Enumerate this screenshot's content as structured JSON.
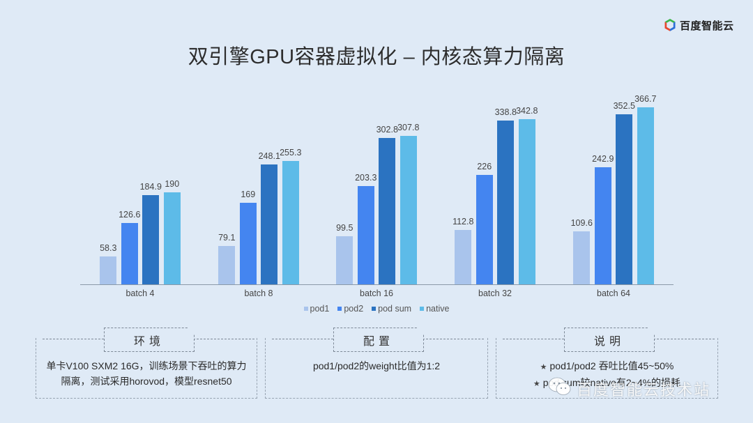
{
  "brand": {
    "name": "百度智能云",
    "icon": "baidu-cloud-hexagon-logo",
    "colors": [
      "#3bb54a",
      "#e8482f",
      "#2d6fd8"
    ]
  },
  "title": "双引擎GPU容器虚拟化 – 内核态算力隔离",
  "chart_data": {
    "type": "bar",
    "title": "",
    "xlabel": "",
    "ylabel": "",
    "grid": false,
    "legend_position": "bottom",
    "categories": [
      "batch 4",
      "batch 8",
      "batch 16",
      "batch 32",
      "batch 64"
    ],
    "series": [
      {
        "name": "pod1",
        "color": "#a9c4ec",
        "values": [
          58.3,
          79.1,
          99.5,
          112.8,
          109.6
        ]
      },
      {
        "name": "pod2",
        "color": "#4485f0",
        "values": [
          126.6,
          169,
          203.3,
          226,
          242.9
        ]
      },
      {
        "name": "pod sum",
        "color": "#2b73c1",
        "values": [
          184.9,
          248.1,
          302.8,
          338.8,
          352.5
        ]
      },
      {
        "name": "native",
        "color": "#5dbbe8",
        "values": [
          190,
          255.3,
          307.8,
          342.8,
          366.7
        ]
      }
    ],
    "value_labels": [
      [
        "58.3",
        "79.1",
        "99.5",
        "112.8",
        "109.6"
      ],
      [
        "126.6",
        "169",
        "203.3",
        "226",
        "242.9"
      ],
      [
        "184.9",
        "248.1",
        "302.8",
        "338.8",
        "352.5"
      ],
      [
        "190",
        "255.3",
        "307.8",
        "342.8",
        "366.7"
      ]
    ],
    "ylim": [
      0,
      400
    ]
  },
  "legend": {
    "items": [
      {
        "label": "pod1",
        "color": "#a9c4ec"
      },
      {
        "label": "pod2",
        "color": "#4485f0"
      },
      {
        "label": "pod sum",
        "color": "#2b73c1"
      },
      {
        "label": "native",
        "color": "#5dbbe8"
      }
    ]
  },
  "panels": [
    {
      "heading": "环境",
      "lines": [
        "单卡V100 SXM2 16G，训练场景下吞吐的算力",
        "隔离，测试采用horovod，模型resnet50"
      ]
    },
    {
      "heading": "配置",
      "lines": [
        "pod1/pod2的weight比值为1:2"
      ]
    },
    {
      "heading": "说明",
      "lines": [
        "pod1/pod2 吞吐比值45~50%",
        "pod sum较native有2~4%的损耗"
      ],
      "bullet": "★"
    }
  ],
  "watermark": {
    "text": "百度智能云技术站",
    "icon": "wechat-icon"
  }
}
